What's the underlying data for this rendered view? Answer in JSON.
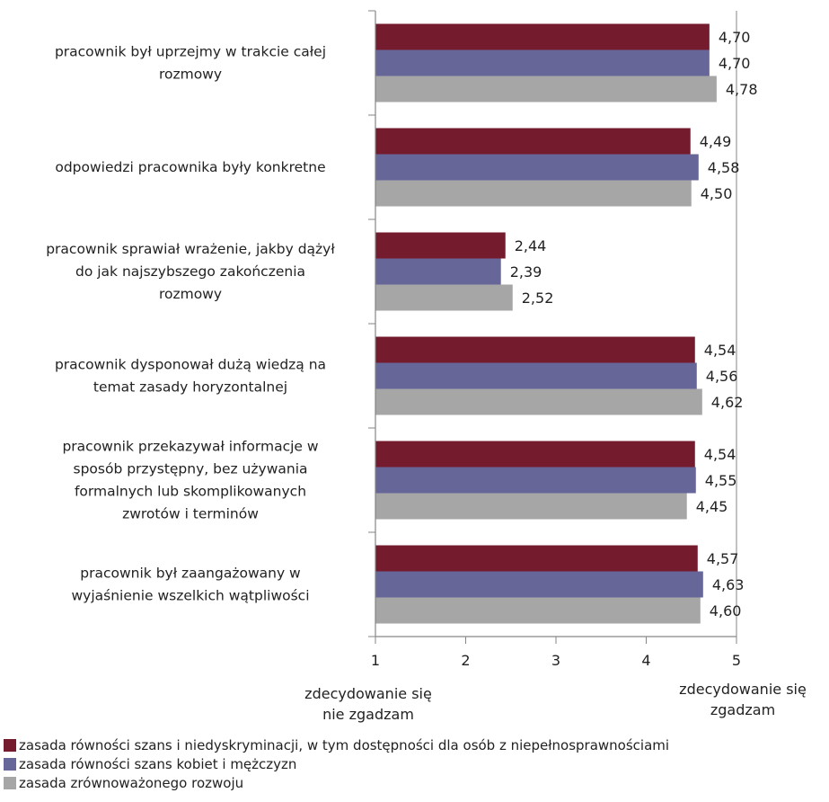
{
  "chart_data": {
    "type": "bar",
    "orientation": "horizontal",
    "categories": [
      [
        "pracownik był uprzejmy w trakcie całej",
        "rozmowy"
      ],
      [
        "odpowiedzi pracownika były konkretne"
      ],
      [
        "pracownik sprawiał wrażenie, jakby dążył",
        "do jak najszybszego zakończenia",
        "rozmowy"
      ],
      [
        "pracownik dysponował dużą wiedzą na",
        "temat zasady horyzontalnej"
      ],
      [
        "pracownik przekazywał informacje w",
        "sposób przystępny, bez używania",
        "formalnych lub skomplikowanych",
        "zwrotów i terminów"
      ],
      [
        "pracownik był zaangażowany w",
        "wyjaśnienie wszelkich wątpliwości"
      ]
    ],
    "series": [
      {
        "name": "zasada równości szans i niedyskryminacji, w tym dostępności dla osób z niepełnosprawnościami",
        "color": "#741b2e",
        "values": [
          4.7,
          4.49,
          2.44,
          4.54,
          4.54,
          4.57
        ],
        "labels": [
          "4,70",
          "4,49",
          "2,44",
          "4,54",
          "4,54",
          "4,57"
        ]
      },
      {
        "name": "zasada równości szans kobiet i mężczyzn",
        "color": "#666699",
        "values": [
          4.7,
          4.58,
          2.39,
          4.56,
          4.55,
          4.63
        ],
        "labels": [
          "4,70",
          "4,58",
          "2,39",
          "4,56",
          "4,55",
          "4,63"
        ]
      },
      {
        "name": "zasada zrównoważonego rozwoju",
        "color": "#a6a6a6",
        "values": [
          4.78,
          4.5,
          2.52,
          4.62,
          4.45,
          4.6
        ],
        "labels": [
          "4,78",
          "4,50",
          "2,52",
          "4,62",
          "4,45",
          "4,60"
        ]
      }
    ],
    "xlim": [
      1,
      5
    ],
    "xticks": [
      "1",
      "2",
      "3",
      "4",
      "5"
    ],
    "x_min_label": [
      "zdecydowanie się",
      "nie zgadzam"
    ],
    "x_max_label": [
      "zdecydowanie się",
      "zgadzam"
    ],
    "grid": "vertical line at 5",
    "legend_position": "bottom-left"
  }
}
